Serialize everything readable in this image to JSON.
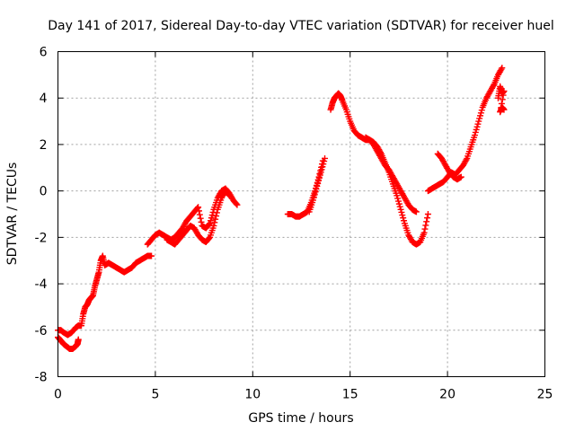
{
  "chart_data": {
    "type": "scatter",
    "title": "Day 141 of 2017, Sidereal Day-to-day VTEC variation (SDTVAR) for receiver huel",
    "xlabel": "GPS time / hours",
    "ylabel": "SDTVAR / TECUs",
    "xlim": [
      0,
      25
    ],
    "ylim": [
      -8,
      6
    ],
    "xticks": [
      0,
      5,
      10,
      15,
      20,
      25
    ],
    "yticks": [
      -8,
      -6,
      -4,
      -2,
      0,
      2,
      4,
      6
    ],
    "grid": true,
    "marker": "plus",
    "color": "#ff0000",
    "series": [
      {
        "x": [
          0.0,
          0.15,
          0.3,
          0.5,
          0.7,
          0.9,
          1.05,
          1.2,
          1.3,
          1.4,
          1.5,
          1.6,
          1.7,
          1.8,
          1.9,
          2.0,
          2.1,
          2.2,
          2.3,
          2.4,
          2.6,
          2.8,
          3.0,
          3.2,
          3.4,
          3.6,
          3.8,
          4.0,
          4.2,
          4.4,
          4.6,
          4.8
        ],
        "y": [
          -6.0,
          -6.0,
          -6.1,
          -6.2,
          -6.1,
          -5.9,
          -5.8,
          -5.8,
          -5.3,
          -5.0,
          -4.9,
          -4.7,
          -4.6,
          -4.5,
          -4.1,
          -3.8,
          -3.5,
          -3.0,
          -2.8,
          -3.2,
          -3.1,
          -3.2,
          -3.3,
          -3.4,
          -3.5,
          -3.4,
          -3.3,
          -3.1,
          -3.0,
          -2.9,
          -2.8,
          -2.8
        ]
      },
      {
        "x": [
          0.0,
          0.1,
          0.2,
          0.3,
          0.45,
          0.6,
          0.75,
          0.9,
          1.0,
          1.05
        ],
        "y": [
          -6.3,
          -6.4,
          -6.5,
          -6.6,
          -6.7,
          -6.8,
          -6.8,
          -6.7,
          -6.6,
          -6.4
        ]
      },
      {
        "x": [
          4.6,
          4.8,
          5.0,
          5.2,
          5.4,
          5.6,
          5.8,
          6.0,
          6.2,
          6.4,
          6.6,
          6.8,
          7.0,
          7.2,
          7.4,
          7.6,
          7.8,
          8.0,
          8.2,
          8.4,
          8.6,
          8.8,
          9.0,
          9.2
        ],
        "y": [
          -2.3,
          -2.1,
          -1.9,
          -1.8,
          -1.9,
          -2.0,
          -2.1,
          -2.0,
          -1.8,
          -1.6,
          -1.3,
          -1.1,
          -0.9,
          -0.7,
          -1.5,
          -1.6,
          -1.4,
          -0.8,
          -0.3,
          0.0,
          0.1,
          -0.1,
          -0.4,
          -0.6
        ]
      },
      {
        "x": [
          5.6,
          5.8,
          6.0,
          6.2,
          6.4,
          6.6,
          6.8,
          7.0,
          7.2,
          7.4,
          7.6,
          7.8,
          8.0,
          8.2,
          8.4,
          8.6,
          8.8
        ],
        "y": [
          -2.1,
          -2.2,
          -2.3,
          -2.1,
          -1.9,
          -1.7,
          -1.5,
          -1.6,
          -1.9,
          -2.1,
          -2.2,
          -2.0,
          -1.5,
          -0.8,
          -0.3,
          0.0,
          -0.2
        ]
      },
      {
        "x": [
          11.8,
          12.0,
          12.2,
          12.4,
          12.6,
          12.8,
          13.0,
          13.2,
          13.4,
          13.6
        ],
        "y": [
          -1.0,
          -1.0,
          -1.1,
          -1.1,
          -1.0,
          -0.9,
          -0.5,
          0.0,
          0.6,
          1.3
        ]
      },
      {
        "x": [
          12.9,
          13.1,
          13.3,
          13.5,
          13.7
        ],
        "y": [
          -0.9,
          -0.4,
          0.2,
          0.8,
          1.4
        ]
      },
      {
        "x": [
          14.0,
          14.1,
          14.2,
          14.3,
          14.4,
          14.5,
          14.6,
          14.8,
          15.0,
          15.2,
          15.4,
          15.6,
          15.8,
          16.0,
          16.2,
          16.4,
          16.6,
          16.8,
          17.0,
          17.2,
          17.4,
          17.6,
          17.8,
          18.0,
          18.2,
          18.4,
          18.6,
          18.8,
          19.0
        ],
        "y": [
          3.5,
          3.8,
          4.0,
          4.1,
          4.2,
          4.1,
          3.9,
          3.5,
          3.0,
          2.6,
          2.4,
          2.3,
          2.2,
          2.2,
          2.1,
          1.9,
          1.6,
          1.2,
          0.8,
          0.3,
          -0.2,
          -0.8,
          -1.4,
          -1.9,
          -2.2,
          -2.3,
          -2.2,
          -1.8,
          -1.0
        ]
      },
      {
        "x": [
          15.8,
          16.0,
          16.2,
          16.4,
          16.6,
          16.8,
          17.0,
          17.2,
          17.4,
          17.6,
          17.8,
          18.0,
          18.2,
          18.4
        ],
        "y": [
          2.3,
          2.2,
          2.0,
          1.7,
          1.4,
          1.1,
          0.9,
          0.6,
          0.3,
          0.0,
          -0.3,
          -0.6,
          -0.8,
          -0.9
        ]
      },
      {
        "x": [
          19.0,
          19.2,
          19.4,
          19.6,
          19.8,
          20.0,
          20.2,
          20.4,
          20.6,
          20.8,
          21.0,
          21.2,
          21.4,
          21.6,
          21.8,
          22.0,
          22.2,
          22.4,
          22.6,
          22.8
        ],
        "y": [
          0.0,
          0.1,
          0.2,
          0.3,
          0.4,
          0.6,
          0.8,
          0.7,
          0.9,
          1.1,
          1.4,
          1.9,
          2.4,
          3.0,
          3.6,
          4.0,
          4.3,
          4.6,
          5.0,
          5.3
        ]
      },
      {
        "x": [
          19.5,
          19.7,
          19.9,
          20.1,
          20.3,
          20.5,
          20.7
        ],
        "y": [
          1.6,
          1.4,
          1.1,
          0.8,
          0.6,
          0.5,
          0.6
        ]
      },
      {
        "x": [
          22.6,
          22.7,
          22.8,
          22.9,
          22.7,
          22.8,
          22.9
        ],
        "y": [
          4.0,
          4.5,
          4.2,
          4.3,
          3.4,
          3.6,
          3.5
        ]
      }
    ]
  }
}
